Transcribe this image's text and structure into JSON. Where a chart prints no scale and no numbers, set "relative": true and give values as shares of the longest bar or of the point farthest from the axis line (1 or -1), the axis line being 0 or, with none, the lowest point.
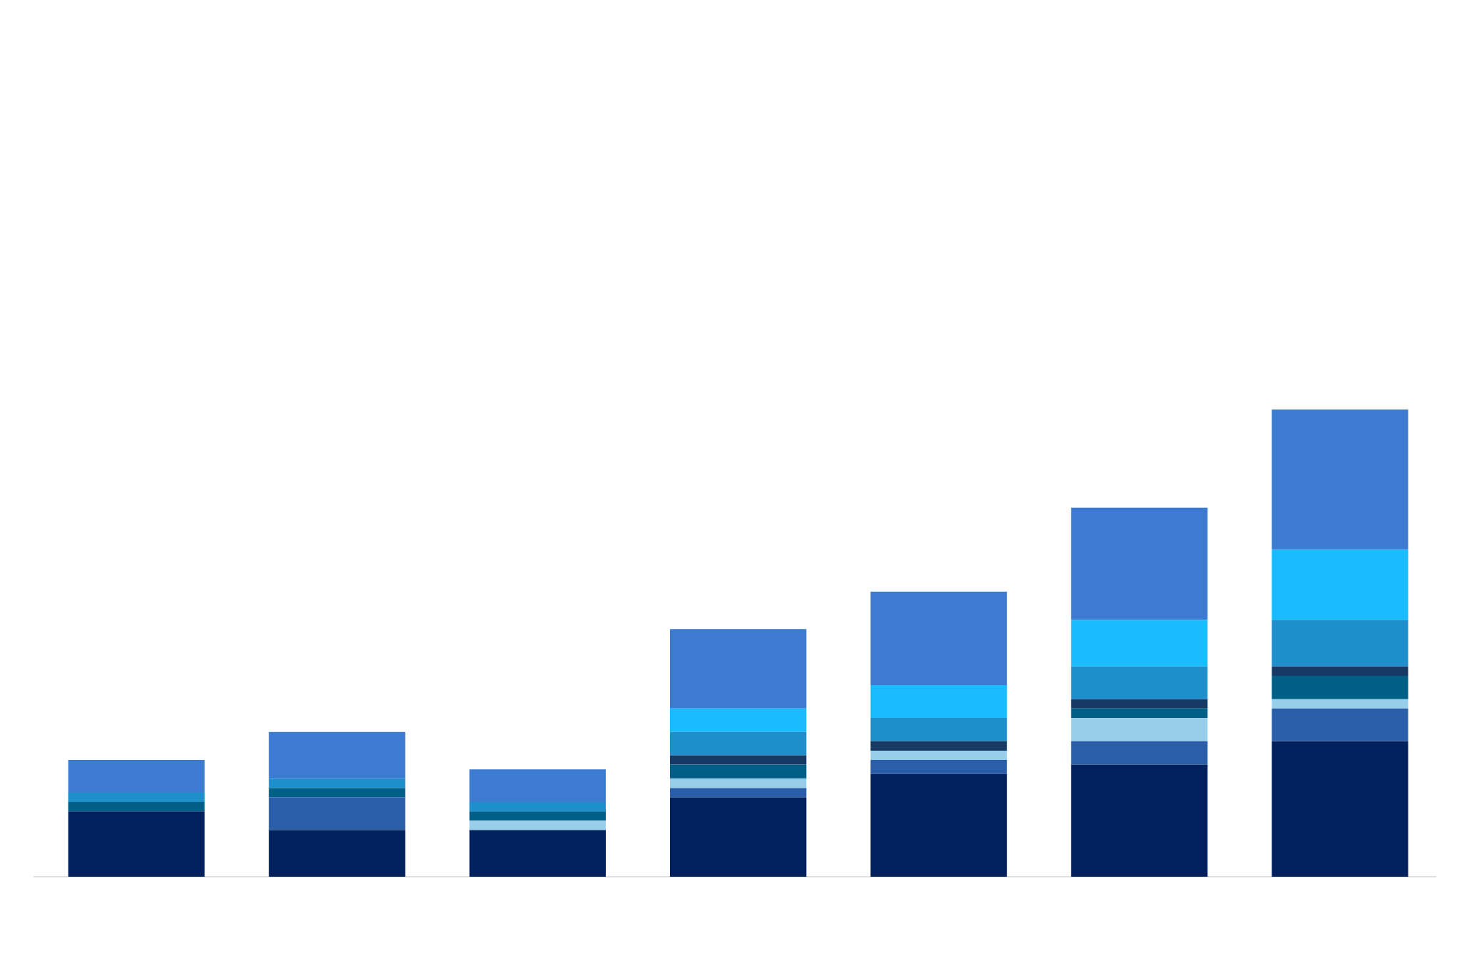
{
  "chart_data": {
    "type": "bar",
    "stacked": true,
    "relative": true,
    "categories": [
      null,
      null,
      null,
      null,
      null,
      null,
      null
    ],
    "series": [
      {
        "color": "#01205e",
        "values": [
          0.14,
          0.1,
          0.1,
          0.17,
          0.22,
          0.24,
          0.29
        ]
      },
      {
        "color": "#2a5ea8",
        "values": [
          null,
          0.07,
          null,
          0.02,
          0.03,
          0.05,
          0.07
        ]
      },
      {
        "color": "#97cfeb",
        "values": [
          null,
          null,
          0.02,
          0.02,
          0.02,
          0.05,
          0.02
        ]
      },
      {
        "color": "#005f86",
        "values": [
          0.02,
          0.02,
          0.02,
          0.03,
          null,
          0.02,
          0.05
        ]
      },
      {
        "color": "#173a64",
        "values": [
          null,
          null,
          null,
          0.02,
          0.02,
          0.02,
          0.02
        ]
      },
      {
        "color": "#1f8fcb",
        "values": [
          0.02,
          0.02,
          0.02,
          0.05,
          0.05,
          0.07,
          0.1
        ]
      },
      {
        "color": "#1bbcff",
        "values": [
          null,
          null,
          null,
          0.05,
          0.07,
          0.1,
          0.15
        ]
      },
      {
        "color": "#3c7bcf",
        "values": [
          0.07,
          0.1,
          0.07,
          0.17,
          0.2,
          0.24,
          0.3
        ]
      }
    ]
  }
}
